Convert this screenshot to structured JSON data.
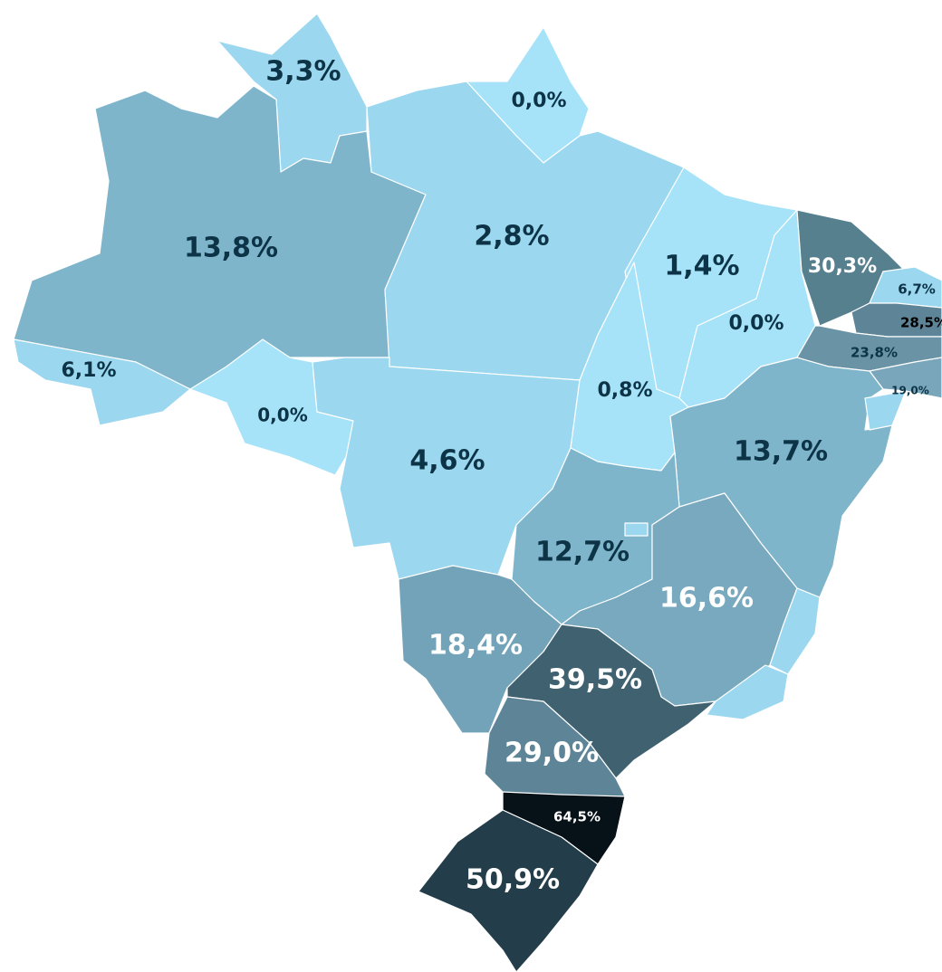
{
  "regions": [
    {
      "label": "3,3%",
      "color": "#9bd7ef"
    },
    {
      "label": "0,0%",
      "color": "#a6e3f9"
    },
    {
      "label": "13,8%",
      "color": "#7fb5cb"
    },
    {
      "label": "2,8%",
      "color": "#9bd7ef"
    },
    {
      "label": "1,4%",
      "color": "#a6e3f9"
    },
    {
      "label": "0,0%",
      "color": "#a6e3f9"
    },
    {
      "label": "30,3%",
      "color": "#57808f"
    },
    {
      "label": "6,7%",
      "color": "#9bd7ef"
    },
    {
      "label": "28,5%",
      "color": "#5d8597"
    },
    {
      "label": "23,8%",
      "color": "#6a93a6"
    },
    {
      "label": "19,0%",
      "color": "#79a6ba"
    },
    {
      "label": "6,1%",
      "color": "#9bd7ef"
    },
    {
      "label": "0,0%",
      "color": "#a6e3f9"
    },
    {
      "label": "4,6%",
      "color": "#9bd7ef"
    },
    {
      "label": "0,8%",
      "color": "#a6e3f9"
    },
    {
      "label": "13,7%",
      "color": "#7fb5cb"
    },
    {
      "label": "12,7%",
      "color": "#7fb5cb"
    },
    {
      "label": "16,6%",
      "color": "#79a9be"
    },
    {
      "label": "18,4%",
      "color": "#72a3b8"
    },
    {
      "label": "39,5%",
      "color": "#3f6170"
    },
    {
      "label": "29,0%",
      "color": "#5d8597"
    },
    {
      "label": "64,5%",
      "color": "#071118"
    },
    {
      "label": "50,9%",
      "color": "#233d4a"
    }
  ]
}
